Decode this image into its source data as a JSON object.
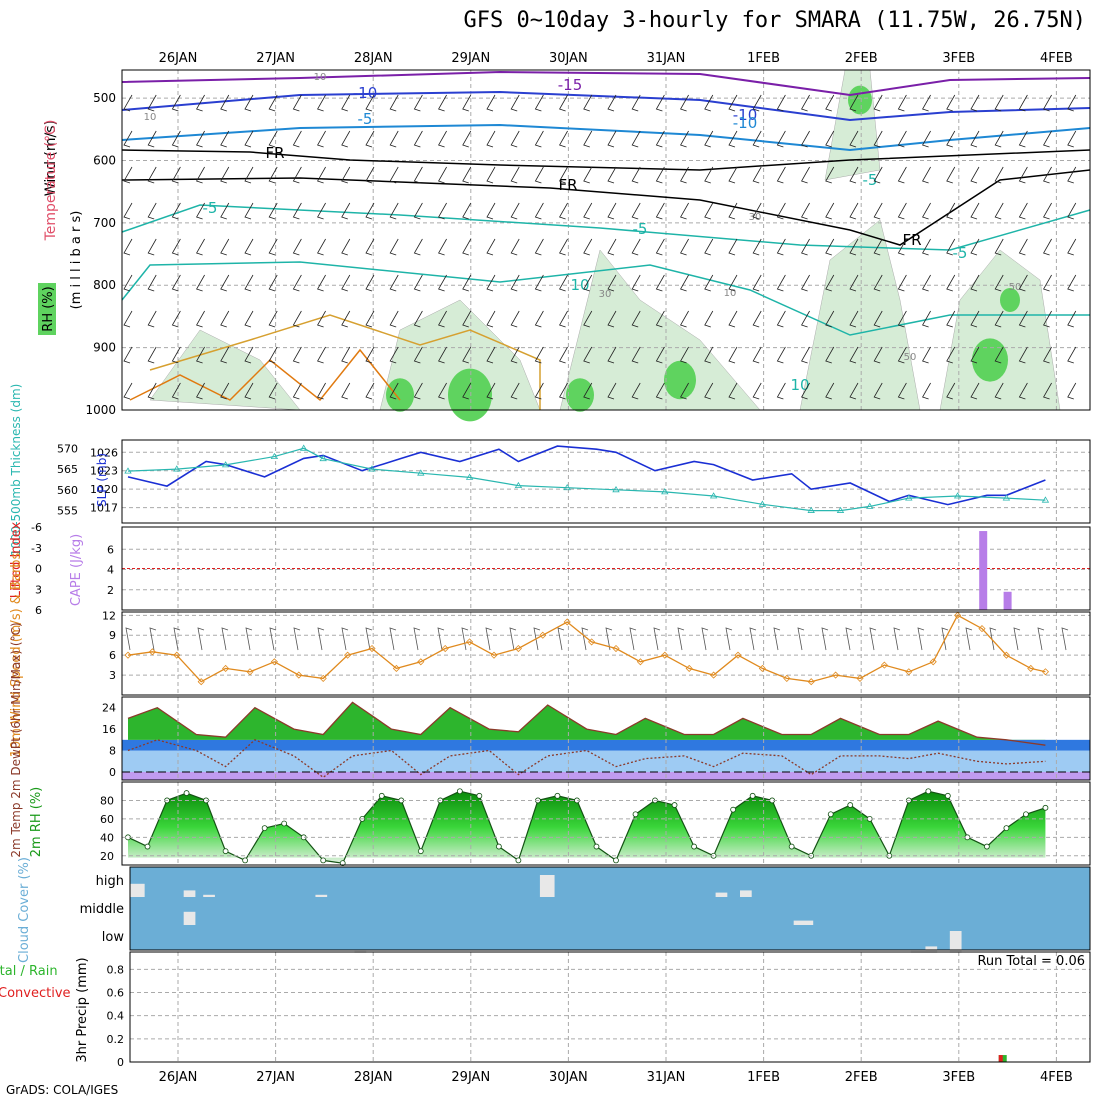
{
  "title": "GFS 0~10day 3-hourly for SMARA (11.75W, 26.75N)",
  "footer": "GrADS: COLA/IGES",
  "dates": [
    "26JAN",
    "27JAN",
    "28JAN",
    "29JAN",
    "30JAN",
    "31JAN",
    "1FEB",
    "2FEB",
    "3FEB",
    "4FEB"
  ],
  "colors": {
    "grid": "#aaaaaa",
    "green": "#00cc00",
    "blue": "#1a2fd4",
    "cyan": "#2ab7b0",
    "orange": "#e08a1e",
    "purple": "#b77de8",
    "red": "#e02020",
    "cloud": "#6baed6"
  },
  "chart_data": [
    {
      "type": "heatmap",
      "name": "upper",
      "ylabel_rh": "RH (%)",
      "ylabel_temp": "Temperature (°C)",
      "ylabel_wind": "Wind (m/s)",
      "ylabel_mb": "(m i l l i b a r s)",
      "yticks": [
        500,
        600,
        700,
        800,
        900,
        1000
      ],
      "ylim": [
        455,
        1000
      ],
      "contour_labels": [
        "-15",
        "-10",
        "-10",
        "-5",
        "-5",
        "-5",
        "FR",
        "FR",
        "FR",
        "-5",
        "-5",
        "-10",
        "10",
        "10",
        "10",
        "10",
        "30",
        "30",
        "50",
        "50",
        "10"
      ]
    },
    {
      "type": "line",
      "name": "slp_thickness",
      "ylabel_left": "1000-500mb Thickness (dm)",
      "ylabel_right": "SLP (mb)",
      "yticks_thick": [
        555,
        560,
        565,
        570
      ],
      "yticks_slp": [
        1017,
        1020,
        1023,
        1026
      ],
      "slp_x": [
        0,
        0.4,
        0.8,
        1,
        1.4,
        1.8,
        2,
        2.4,
        2.8,
        3,
        3.4,
        3.8,
        4,
        4.4,
        4.8,
        5,
        5.4,
        5.8,
        6,
        6.4,
        6.8,
        7,
        7.4,
        7.8,
        8,
        8.4,
        8.8,
        9,
        9.4
      ],
      "slp": [
        1022,
        1020.5,
        1024.5,
        1024,
        1022,
        1025,
        1025.5,
        1023,
        1025,
        1026,
        1024.5,
        1026.5,
        1024.5,
        1027,
        1026.5,
        1026,
        1023,
        1024.5,
        1024,
        1021.5,
        1022.5,
        1020,
        1021,
        1018,
        1019,
        1017.5,
        1019,
        1019,
        1021.5
      ],
      "thick_x": [
        0,
        0.5,
        1,
        1.5,
        1.8,
        2,
        2.5,
        3,
        3.5,
        4,
        4.5,
        5,
        5.5,
        6,
        6.5,
        7,
        7.3,
        7.6,
        8,
        8.5,
        9,
        9.4
      ],
      "thick": [
        564.5,
        565,
        566,
        568,
        570,
        567.5,
        565,
        564,
        563,
        561,
        560.5,
        560,
        559.5,
        558.5,
        556.5,
        555,
        555,
        556,
        558,
        558.5,
        558,
        557.5
      ]
    },
    {
      "type": "bar",
      "name": "cape_li",
      "ylabel_left": "Lifted Index",
      "ylabel_right": "CAPE (J/kg)",
      "yticks_li": [
        "-6",
        "-3",
        "0",
        "3",
        "6"
      ],
      "yticks_cape": [
        2,
        4,
        6
      ],
      "x": [
        8.25,
        8.5
      ],
      "values": [
        7.8,
        1.8
      ]
    },
    {
      "type": "line",
      "name": "wind10m",
      "ylabel": "10m Wind Speed (m/s) & Barbs",
      "yticks": [
        3,
        6,
        9,
        12
      ],
      "ylim": [
        0,
        12.5
      ],
      "x": [
        0,
        0.25,
        0.5,
        0.75,
        1,
        1.25,
        1.5,
        1.75,
        2,
        2.25,
        2.5,
        2.75,
        3,
        3.25,
        3.5,
        3.75,
        4,
        4.25,
        4.5,
        4.75,
        5,
        5.25,
        5.5,
        5.75,
        6,
        6.25,
        6.5,
        6.75,
        7,
        7.25,
        7.5,
        7.75,
        8,
        8.25,
        8.5,
        8.75,
        9,
        9.25,
        9.4
      ],
      "values": [
        6,
        6.5,
        6,
        2,
        4,
        3.5,
        5,
        3,
        2.5,
        6,
        7,
        4,
        5,
        7,
        8,
        6,
        7,
        9,
        11,
        8,
        7,
        5,
        6,
        4,
        3,
        6,
        4,
        2.5,
        2,
        3,
        2.5,
        4.5,
        3.5,
        5,
        12,
        10,
        6,
        4,
        3.5
      ]
    },
    {
      "type": "area",
      "name": "temp2m",
      "ylabel": "2m Temp 2m DewPt (6hr Min/Max) (°C)",
      "yticks": [
        0,
        8,
        16,
        24
      ],
      "ylim": [
        -3,
        28
      ],
      "x": [
        0,
        0.3,
        0.7,
        1,
        1.3,
        1.7,
        2,
        2.3,
        2.7,
        3,
        3.3,
        3.7,
        4,
        4.3,
        4.7,
        5,
        5.3,
        5.7,
        6,
        6.3,
        6.7,
        7,
        7.3,
        7.7,
        8,
        8.3,
        8.7,
        9,
        9.4
      ],
      "temp": [
        20,
        24,
        14,
        13,
        24,
        16,
        14,
        26,
        16,
        14,
        24,
        16,
        15,
        25,
        16,
        14,
        20,
        14,
        14,
        20,
        14,
        14,
        20,
        14,
        14,
        19,
        13,
        12,
        10
      ],
      "dew": [
        8,
        12,
        8,
        2,
        12,
        6,
        -2,
        6,
        8,
        -1,
        6,
        8,
        -1,
        6,
        8,
        2,
        5,
        6,
        2,
        7,
        6,
        -1,
        6,
        6,
        5,
        7,
        4,
        3,
        4
      ]
    },
    {
      "type": "area",
      "name": "rh2m",
      "ylabel": "2m RH (%)",
      "yticks": [
        20,
        40,
        60,
        80
      ],
      "ylim": [
        10,
        100
      ],
      "x": [
        0,
        0.2,
        0.4,
        0.6,
        0.8,
        1,
        1.2,
        1.4,
        1.6,
        1.8,
        2,
        2.2,
        2.4,
        2.6,
        2.8,
        3,
        3.2,
        3.4,
        3.6,
        3.8,
        4,
        4.2,
        4.4,
        4.6,
        4.8,
        5,
        5.2,
        5.4,
        5.6,
        5.8,
        6,
        6.2,
        6.4,
        6.6,
        6.8,
        7,
        7.2,
        7.4,
        7.6,
        7.8,
        8,
        8.2,
        8.4,
        8.6,
        8.8,
        9,
        9.2,
        9.4
      ],
      "values": [
        40,
        30,
        80,
        88,
        80,
        25,
        15,
        50,
        55,
        40,
        15,
        12,
        60,
        85,
        80,
        25,
        80,
        90,
        85,
        30,
        15,
        80,
        85,
        80,
        30,
        15,
        65,
        80,
        75,
        30,
        20,
        70,
        85,
        80,
        30,
        20,
        65,
        75,
        60,
        20,
        80,
        90,
        85,
        40,
        30,
        50,
        65,
        72
      ]
    },
    {
      "type": "bar",
      "name": "cloud",
      "ylabel": "Cloud Cover (%)",
      "levels": [
        "high",
        "middle",
        "low"
      ],
      "blocks": [
        {
          "level": 0,
          "x": 0,
          "w": 0.15,
          "f": 0.6
        },
        {
          "level": 0,
          "x": 0.55,
          "w": 0.12,
          "f": 0.3
        },
        {
          "level": 0,
          "x": 0.75,
          "w": 0.12,
          "f": 0.1
        },
        {
          "level": 0,
          "x": 1.9,
          "w": 0.12,
          "f": 0.1
        },
        {
          "level": 0,
          "x": 4.2,
          "w": 0.15,
          "f": 1.0
        },
        {
          "level": 0,
          "x": 6.0,
          "w": 0.12,
          "f": 0.2
        },
        {
          "level": 0,
          "x": 6.25,
          "w": 0.12,
          "f": 0.3
        },
        {
          "level": 1,
          "x": 0.55,
          "w": 0.12,
          "f": 0.6
        },
        {
          "level": 1,
          "x": 6.8,
          "w": 0.2,
          "f": 0.2
        },
        {
          "level": 2,
          "x": 2.3,
          "w": 0.12,
          "f": 0.1
        },
        {
          "level": 2,
          "x": 8.0,
          "w": 0.15,
          "f": 0.1
        },
        {
          "level": 2,
          "x": 8.15,
          "w": 0.12,
          "f": 0.3
        },
        {
          "level": 2,
          "x": 8.4,
          "w": 0.12,
          "f": 1.0
        }
      ]
    },
    {
      "type": "bar",
      "name": "precip",
      "ylabel_total": "Total / Rain",
      "ylabel_conv": "Convective",
      "ylabel": "3hr Precip (mm)",
      "run_total": "Run Total = 0.06",
      "yticks": [
        "0",
        "0.2",
        "0.4",
        "0.6",
        "0.8"
      ],
      "ylim": [
        0,
        0.95
      ],
      "x": [
        8.45
      ],
      "total": [
        0.06
      ],
      "convective": [
        0.03
      ]
    }
  ]
}
